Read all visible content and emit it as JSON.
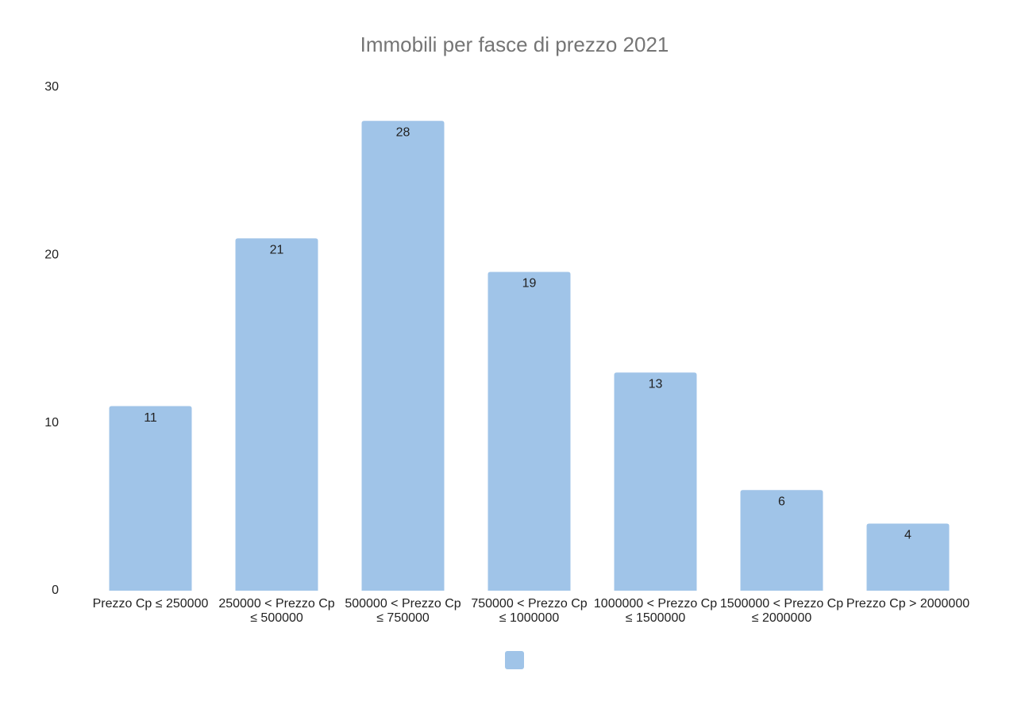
{
  "chart_data": {
    "type": "bar",
    "title": "Immobili per fasce di prezzo 2021",
    "categories": [
      "Prezzo Cp ≤ 250000",
      "250000 < Prezzo Cp ≤ 500000",
      "500000 < Prezzo Cp ≤ 750000",
      "750000 < Prezzo Cp ≤ 1000000",
      "1000000 < Prezzo Cp ≤ 1500000",
      "1500000 < Prezzo Cp ≤ 2000000",
      "Prezzo Cp > 2000000"
    ],
    "values": [
      11,
      21,
      28,
      19,
      13,
      6,
      4
    ],
    "color": "#a0c4e8",
    "ylim": [
      0,
      30
    ],
    "yticks": [
      0,
      10,
      20,
      30
    ],
    "grid": false
  }
}
